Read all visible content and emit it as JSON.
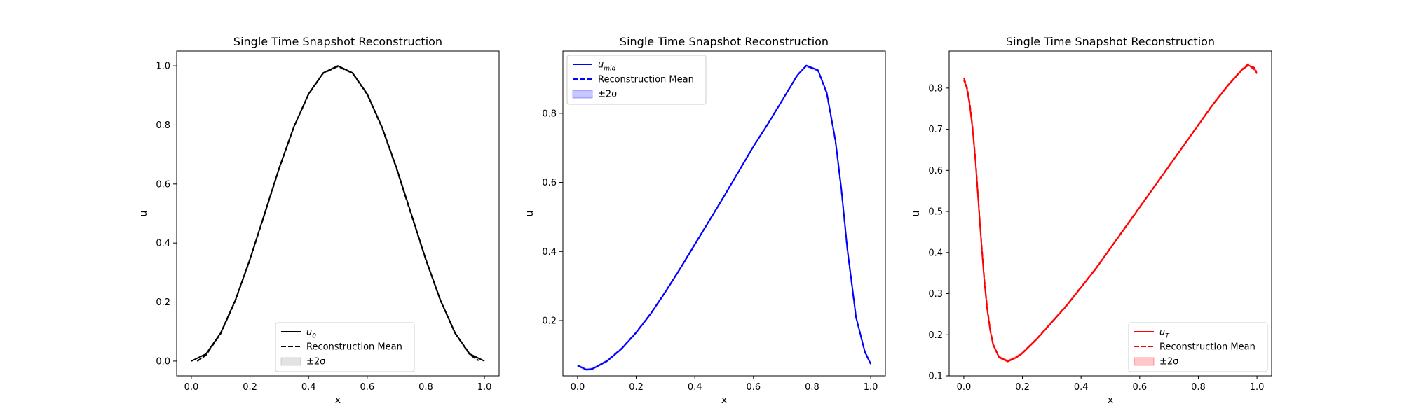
{
  "chart_data": [
    {
      "type": "line",
      "title": "Single Time Snapshot Reconstruction",
      "xlabel": "x",
      "ylabel": "u",
      "xlim": [
        -0.05,
        1.05
      ],
      "ylim": [
        -0.05,
        1.05
      ],
      "xticks": [
        "0.0",
        "0.2",
        "0.4",
        "0.6",
        "0.8",
        "1.0"
      ],
      "yticks": [
        "0.0",
        "0.2",
        "0.4",
        "0.6",
        "0.8",
        "1.0"
      ],
      "legend_position": "lower center",
      "color": "#000000",
      "band_color": "#808080",
      "series": [
        {
          "name": "u",
          "sub": "0",
          "style": "solid",
          "x": [
            0.0,
            0.05,
            0.1,
            0.15,
            0.2,
            0.25,
            0.3,
            0.35,
            0.4,
            0.45,
            0.5,
            0.55,
            0.6,
            0.65,
            0.7,
            0.75,
            0.8,
            0.85,
            0.9,
            0.95,
            1.0
          ],
          "y": [
            0.0,
            0.024,
            0.095,
            0.206,
            0.345,
            0.5,
            0.655,
            0.794,
            0.905,
            0.976,
            1.0,
            0.976,
            0.905,
            0.794,
            0.655,
            0.5,
            0.345,
            0.206,
            0.095,
            0.024,
            0.0
          ]
        },
        {
          "name": "Reconstruction Mean",
          "style": "dashed",
          "x": [
            0.02,
            0.05,
            0.1,
            0.15,
            0.2,
            0.25,
            0.3,
            0.35,
            0.4,
            0.45,
            0.5,
            0.55,
            0.6,
            0.65,
            0.7,
            0.75,
            0.8,
            0.85,
            0.9,
            0.95,
            0.98
          ],
          "y": [
            0.0,
            0.02,
            0.093,
            0.204,
            0.343,
            0.498,
            0.653,
            0.793,
            0.904,
            0.975,
            0.998,
            0.975,
            0.903,
            0.792,
            0.652,
            0.497,
            0.343,
            0.205,
            0.094,
            0.022,
            0.002
          ]
        },
        {
          "name": "±2σ",
          "style": "band"
        }
      ]
    },
    {
      "type": "line",
      "title": "Single Time Snapshot Reconstruction",
      "xlabel": "x",
      "ylabel": "u",
      "xlim": [
        -0.05,
        1.05
      ],
      "ylim": [
        0.04,
        0.98
      ],
      "xticks": [
        "0.0",
        "0.2",
        "0.4",
        "0.6",
        "0.8",
        "1.0"
      ],
      "yticks": [
        "0.2",
        "0.4",
        "0.6",
        "0.8"
      ],
      "legend_position": "upper left",
      "color": "#0000ff",
      "band_color": "#0000ff",
      "series": [
        {
          "name": "u",
          "sub": "mid",
          "style": "solid",
          "x": [
            0.0,
            0.03,
            0.05,
            0.1,
            0.15,
            0.2,
            0.25,
            0.3,
            0.35,
            0.4,
            0.45,
            0.5,
            0.55,
            0.6,
            0.65,
            0.7,
            0.75,
            0.78,
            0.82,
            0.85,
            0.88,
            0.9,
            0.92,
            0.95,
            0.98,
            1.0
          ],
          "y": [
            0.07,
            0.058,
            0.06,
            0.082,
            0.118,
            0.165,
            0.22,
            0.283,
            0.35,
            0.42,
            0.49,
            0.56,
            0.632,
            0.704,
            0.77,
            0.84,
            0.91,
            0.938,
            0.925,
            0.86,
            0.72,
            0.58,
            0.41,
            0.21,
            0.11,
            0.075
          ]
        },
        {
          "name": "Reconstruction Mean",
          "style": "dashed",
          "x": [
            0.0,
            0.03,
            0.05,
            0.1,
            0.15,
            0.2,
            0.25,
            0.3,
            0.35,
            0.4,
            0.45,
            0.5,
            0.55,
            0.6,
            0.65,
            0.7,
            0.75,
            0.78,
            0.82,
            0.85,
            0.88,
            0.9,
            0.92,
            0.95,
            0.98,
            1.0
          ],
          "y": [
            0.07,
            0.058,
            0.06,
            0.083,
            0.119,
            0.166,
            0.221,
            0.284,
            0.351,
            0.421,
            0.491,
            0.561,
            0.633,
            0.705,
            0.771,
            0.841,
            0.911,
            0.937,
            0.924,
            0.858,
            0.718,
            0.578,
            0.408,
            0.209,
            0.109,
            0.074
          ]
        },
        {
          "name": "±2σ",
          "style": "band"
        }
      ]
    },
    {
      "type": "line",
      "title": "Single Time Snapshot Reconstruction",
      "xlabel": "x",
      "ylabel": "u",
      "xlim": [
        -0.05,
        1.05
      ],
      "ylim": [
        0.1,
        0.89
      ],
      "xticks": [
        "0.0",
        "0.2",
        "0.4",
        "0.6",
        "0.8",
        "1.0"
      ],
      "yticks": [
        "0.1",
        "0.2",
        "0.3",
        "0.4",
        "0.5",
        "0.6",
        "0.7",
        "0.8"
      ],
      "legend_position": "lower right",
      "color": "#ff0000",
      "band_color": "#ff0000",
      "series": [
        {
          "name": "u",
          "sub": "T",
          "style": "solid",
          "x": [
            0.0,
            0.01,
            0.02,
            0.03,
            0.04,
            0.05,
            0.06,
            0.07,
            0.08,
            0.09,
            0.1,
            0.12,
            0.15,
            0.18,
            0.2,
            0.25,
            0.3,
            0.35,
            0.4,
            0.45,
            0.5,
            0.55,
            0.6,
            0.65,
            0.7,
            0.75,
            0.8,
            0.85,
            0.9,
            0.95,
            0.97,
            0.99,
            1.0
          ],
          "y": [
            0.82,
            0.8,
            0.76,
            0.7,
            0.62,
            0.52,
            0.42,
            0.33,
            0.26,
            0.21,
            0.175,
            0.145,
            0.135,
            0.145,
            0.155,
            0.19,
            0.23,
            0.27,
            0.315,
            0.36,
            0.41,
            0.46,
            0.51,
            0.56,
            0.61,
            0.66,
            0.71,
            0.76,
            0.805,
            0.845,
            0.855,
            0.85,
            0.835
          ]
        },
        {
          "name": "Reconstruction Mean",
          "style": "dashed",
          "x": [
            0.0,
            0.01,
            0.02,
            0.03,
            0.04,
            0.05,
            0.06,
            0.07,
            0.08,
            0.09,
            0.1,
            0.12,
            0.15,
            0.18,
            0.2,
            0.25,
            0.3,
            0.35,
            0.4,
            0.45,
            0.5,
            0.55,
            0.6,
            0.65,
            0.7,
            0.75,
            0.8,
            0.85,
            0.9,
            0.95,
            0.97,
            0.99,
            1.0
          ],
          "y": [
            0.825,
            0.805,
            0.765,
            0.705,
            0.625,
            0.525,
            0.425,
            0.335,
            0.265,
            0.213,
            0.177,
            0.146,
            0.136,
            0.146,
            0.156,
            0.191,
            0.231,
            0.271,
            0.316,
            0.361,
            0.411,
            0.461,
            0.511,
            0.561,
            0.611,
            0.661,
            0.711,
            0.761,
            0.806,
            0.846,
            0.858,
            0.845,
            0.84
          ]
        },
        {
          "name": "±2σ",
          "style": "band"
        }
      ]
    }
  ]
}
